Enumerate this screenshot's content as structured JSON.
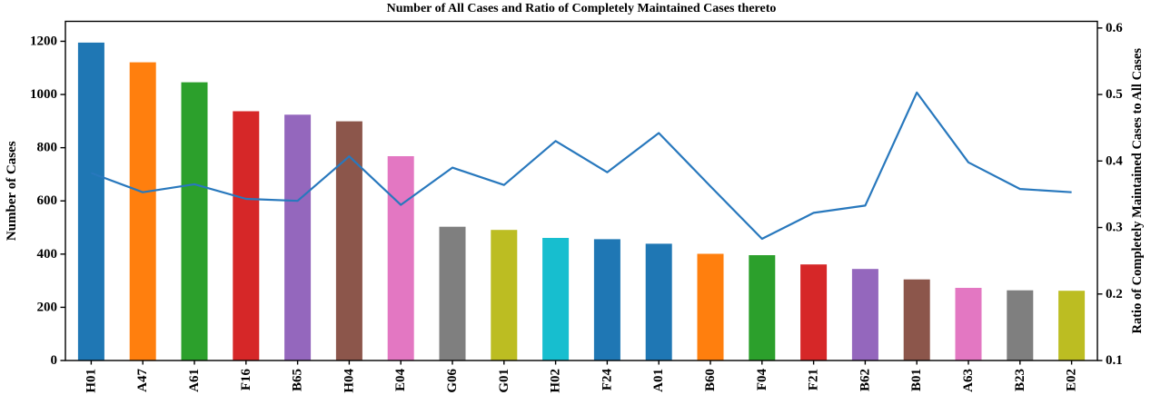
{
  "chart_data": {
    "type": "bar",
    "title": "Number of All Cases and Ratio of Completely Maintained Cases thereto",
    "categories": [
      "H01",
      "A47",
      "A61",
      "F16",
      "B65",
      "H04",
      "E04",
      "G06",
      "G01",
      "H02",
      "F24",
      "A01",
      "B60",
      "F04",
      "F21",
      "B62",
      "B01",
      "A63",
      "B23",
      "E02"
    ],
    "series": [
      {
        "name": "Number of All Cases",
        "type": "bar",
        "axis": "left",
        "values": [
          1195,
          1121,
          1046,
          937,
          924,
          899,
          768,
          503,
          491,
          461,
          456,
          439,
          401,
          396,
          361,
          344,
          305,
          273,
          264,
          262
        ],
        "colors": [
          "#1f77b4",
          "#ff7f0e",
          "#2ca02c",
          "#d62728",
          "#9467bd",
          "#8c564b",
          "#e377c2",
          "#7f7f7f",
          "#bcbd22",
          "#17becf",
          "#1f77b4",
          "#1f77b4",
          "#ff7f0e",
          "#2ca02c",
          "#d62728",
          "#9467bd",
          "#8c564b",
          "#e377c2",
          "#7f7f7f",
          "#bcbd22"
        ]
      },
      {
        "name": "Ratio of Completely Maintained Cases to All Cases",
        "type": "line",
        "axis": "right",
        "values": [
          0.382,
          0.353,
          0.365,
          0.343,
          0.34,
          0.407,
          0.334,
          0.39,
          0.364,
          0.43,
          0.383,
          0.442,
          0.362,
          0.283,
          0.322,
          0.333,
          0.503,
          0.398,
          0.358,
          0.353
        ],
        "color": "#2878bd"
      }
    ],
    "left_axis": {
      "label": "Number of Cases",
      "ticks": [
        0,
        200,
        400,
        600,
        800,
        1000,
        1200
      ],
      "range": [
        0,
        1275
      ]
    },
    "right_axis": {
      "label": "Ratio of Completely Maintained Cases to All Cases",
      "ticks": [
        0.1,
        0.2,
        0.3,
        0.4,
        0.5,
        0.6
      ],
      "range": [
        0.1,
        0.61
      ]
    },
    "grid": false,
    "legend": "none"
  }
}
